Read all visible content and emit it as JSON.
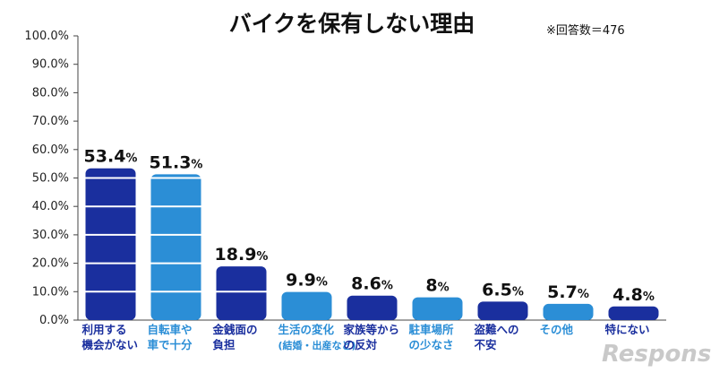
{
  "chart_data": {
    "type": "bar",
    "title": "バイクを保有しない理由",
    "note": "※回答数＝476",
    "y_ticks": [
      "0.0%",
      "10.0%",
      "20.0%",
      "30.0%",
      "40.0%",
      "50.0%",
      "60.0%",
      "70.0%",
      "80.0%",
      "90.0%",
      "100.0%"
    ],
    "ylim": [
      0,
      100
    ],
    "bars": [
      {
        "lines": [
          "利用する",
          "機会がない"
        ],
        "value": 53.4,
        "num": "53.4",
        "pct": "%",
        "color": "#1a2f9e",
        "text_color": "#1a2f9e"
      },
      {
        "lines": [
          "自転車や",
          "車で十分"
        ],
        "value": 51.3,
        "num": "51.3",
        "pct": "%",
        "color": "#2b8ed6",
        "text_color": "#2b8ed6"
      },
      {
        "lines": [
          "金銭面の",
          "負担"
        ],
        "value": 18.9,
        "num": "18.9",
        "pct": "%",
        "color": "#1a2f9e",
        "text_color": "#1a2f9e"
      },
      {
        "lines": [
          "生活の変化",
          "(結婚・出産など)"
        ],
        "value": 9.9,
        "num": "9.9",
        "pct": "%",
        "color": "#2b8ed6",
        "text_color": "#2b8ed6"
      },
      {
        "lines": [
          "家族等から",
          "の反対"
        ],
        "value": 8.6,
        "num": "8.6",
        "pct": "%",
        "color": "#1a2f9e",
        "text_color": "#1a2f9e"
      },
      {
        "lines": [
          "駐車場所",
          "の少なさ"
        ],
        "value": 8.0,
        "num": "8",
        "pct": "%",
        "color": "#2b8ed6",
        "text_color": "#2b8ed6"
      },
      {
        "lines": [
          "盗難への",
          "不安"
        ],
        "value": 6.5,
        "num": "6.5",
        "pct": "%",
        "color": "#1a2f9e",
        "text_color": "#1a2f9e"
      },
      {
        "lines": [
          "その他"
        ],
        "value": 5.7,
        "num": "5.7",
        "pct": "%",
        "color": "#2b8ed6",
        "text_color": "#2b8ed6"
      },
      {
        "lines": [
          "特にない"
        ],
        "value": 4.8,
        "num": "4.8",
        "pct": "%",
        "color": "#1a2f9e",
        "text_color": "#1a2f9e"
      }
    ]
  },
  "watermark": "Response."
}
